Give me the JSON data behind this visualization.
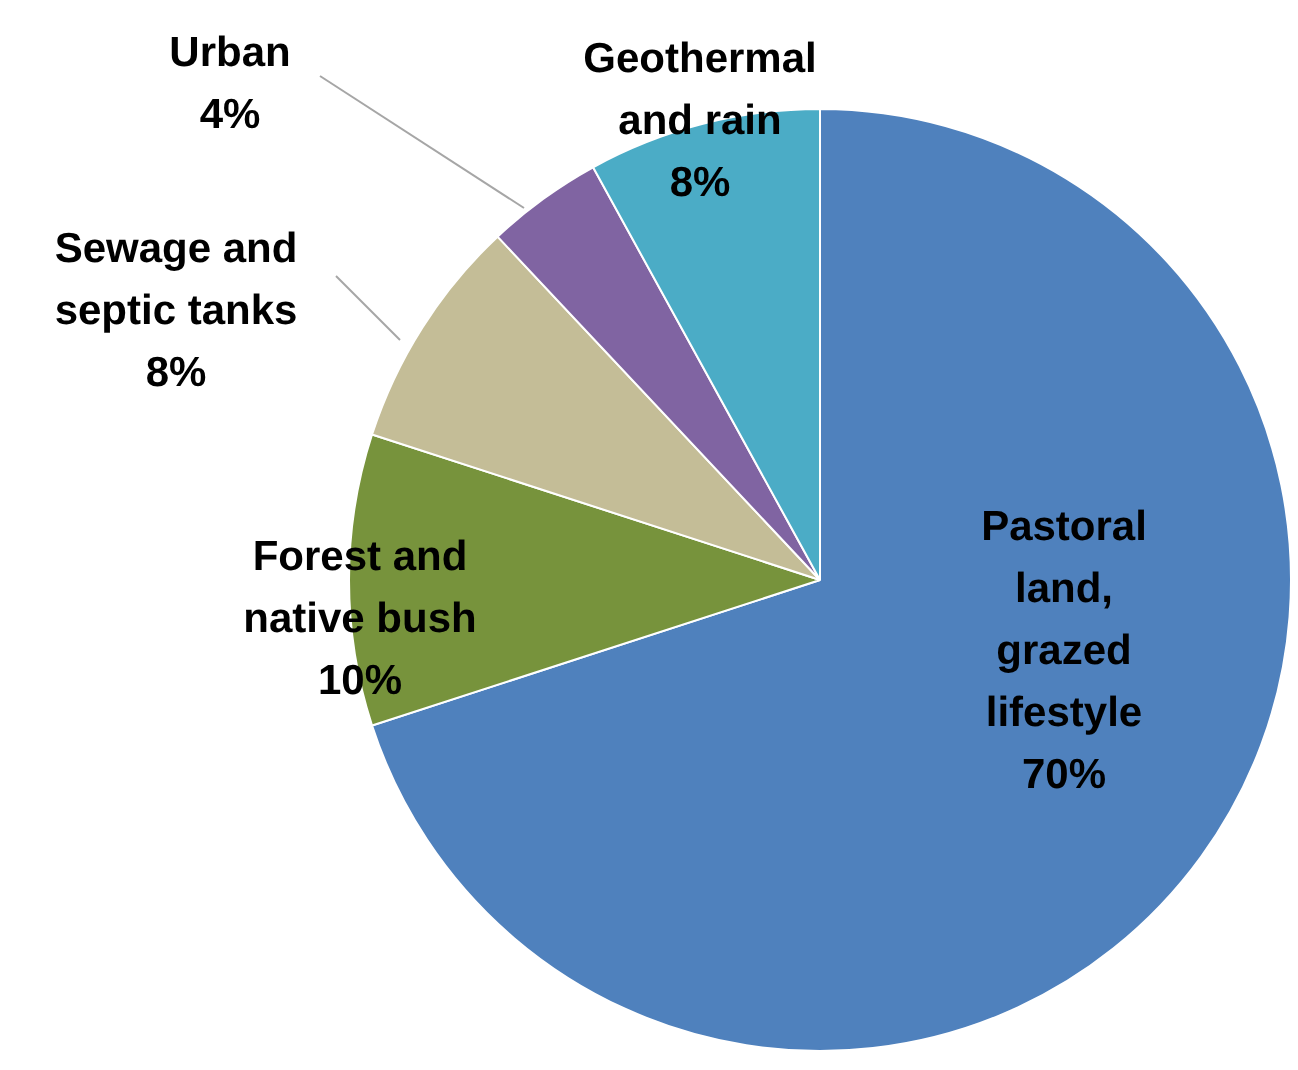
{
  "chart_data": {
    "type": "pie",
    "categories": [
      "Pastoral land, grazed lifestyle",
      "Forest and native bush",
      "Sewage and septic tanks",
      "Urban",
      "Geothermal and rain"
    ],
    "values": [
      70,
      10,
      8,
      4,
      8
    ],
    "value_labels": [
      "70%",
      "10%",
      "8%",
      "4%",
      "8%"
    ],
    "colors": [
      "#4f81bd",
      "#77933c",
      "#c4bd97",
      "#8064a2",
      "#4bacc6"
    ],
    "legend": false
  }
}
